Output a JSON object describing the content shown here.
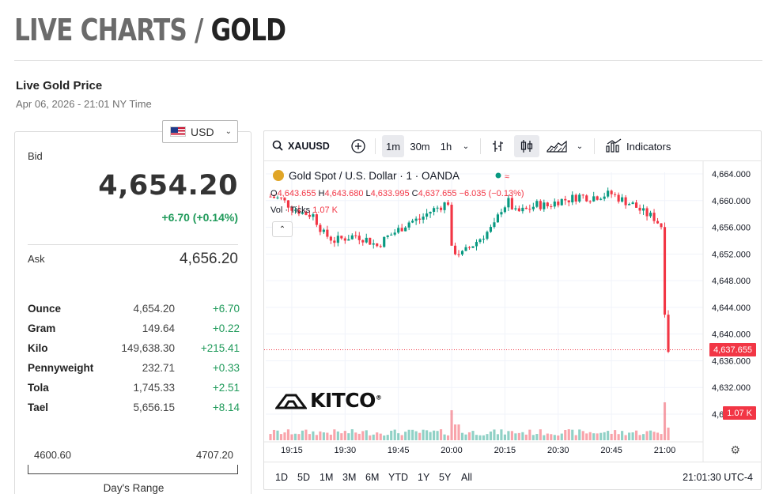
{
  "page": {
    "title_prefix": "LIVE CHARTS /",
    "title_main": "GOLD"
  },
  "header": {
    "section_title": "Live Gold Price",
    "timestamp": "Apr 06, 2026 - 21:01 NY Time"
  },
  "currency": {
    "selected": "USD",
    "flag_icon": "us-flag-icon"
  },
  "quote": {
    "bid_label": "Bid",
    "bid": "4,654.20",
    "change": "+6.70 (+0.14%)",
    "ask_label": "Ask",
    "ask": "4,656.20",
    "change_color": "#1f9a5a"
  },
  "units": [
    {
      "name": "Ounce",
      "price": "4,654.20",
      "change": "+6.70"
    },
    {
      "name": "Gram",
      "price": "149.64",
      "change": "+0.22"
    },
    {
      "name": "Kilo",
      "price": "149,638.30",
      "change": "+215.41"
    },
    {
      "name": "Pennyweight",
      "price": "232.71",
      "change": "+0.33"
    },
    {
      "name": "Tola",
      "price": "1,745.33",
      "change": "+2.51"
    },
    {
      "name": "Tael",
      "price": "5,656.15",
      "change": "+8.14"
    }
  ],
  "range": {
    "low": "4600.60",
    "high": "4707.20",
    "label": "Day's Range"
  },
  "chart_toolbar": {
    "symbol": "XAUUSD",
    "intervals": [
      "1m",
      "30m",
      "1h"
    ],
    "active_interval": "1m",
    "indicators_label": "Indicators"
  },
  "chart_bottombar": {
    "ranges": [
      "1D",
      "5D",
      "1M",
      "3M",
      "6M",
      "YTD",
      "1Y",
      "5Y",
      "All"
    ],
    "clock": "21:01:30 UTC-4"
  },
  "chart_data": {
    "type": "candlestick",
    "title": "Gold Spot / U.S. Dollar · 1 · OANDA",
    "ohlc_labels": {
      "open": "4,643.655",
      "high": "4,643.680",
      "low": "4,633.995",
      "close": "4,637.655",
      "change": "−6.035 (−0.13%)"
    },
    "volume_label": "Vol · Ticks",
    "volume_value": "1.07 K",
    "last_price": "4,637.655",
    "last_volume": "1.07 K",
    "y_ticks": [
      "4,664.000",
      "4,660.000",
      "4,656.000",
      "4,652.000",
      "4,648.000",
      "4,644.000",
      "4,640.000",
      "4,636.000",
      "4,632.000",
      "4,628.000"
    ],
    "ylim": [
      4628,
      4664
    ],
    "x_ticks": [
      "19:15",
      "19:30",
      "19:45",
      "20:00",
      "20:15",
      "20:30",
      "20:45",
      "21:00"
    ],
    "x_start": "19:09",
    "x_end": "21:01",
    "up_color": "#089981",
    "down_color": "#f23645",
    "grid": true,
    "close_path": [
      {
        "t": "19:09",
        "v": 4660.6
      },
      {
        "t": "19:12",
        "v": 4660.2
      },
      {
        "t": "19:15",
        "v": 4659.0
      },
      {
        "t": "19:18",
        "v": 4658.2
      },
      {
        "t": "19:21",
        "v": 4657.8
      },
      {
        "t": "19:24",
        "v": 4655.0
      },
      {
        "t": "19:27",
        "v": 4654.0
      },
      {
        "t": "19:30",
        "v": 4654.4
      },
      {
        "t": "19:33",
        "v": 4654.8
      },
      {
        "t": "19:36",
        "v": 4654.2
      },
      {
        "t": "19:39",
        "v": 4653.2
      },
      {
        "t": "19:42",
        "v": 4654.6
      },
      {
        "t": "19:45",
        "v": 4655.6
      },
      {
        "t": "19:48",
        "v": 4656.8
      },
      {
        "t": "19:51",
        "v": 4657.2
      },
      {
        "t": "19:54",
        "v": 4658.4
      },
      {
        "t": "19:57",
        "v": 4659.2
      },
      {
        "t": "19:59",
        "v": 4659.8
      },
      {
        "t": "20:00",
        "v": 4652.6
      },
      {
        "t": "20:03",
        "v": 4652.0
      },
      {
        "t": "20:06",
        "v": 4653.4
      },
      {
        "t": "20:09",
        "v": 4654.8
      },
      {
        "t": "20:12",
        "v": 4656.2
      },
      {
        "t": "20:14",
        "v": 4658.8
      },
      {
        "t": "20:16",
        "v": 4659.8
      },
      {
        "t": "20:18",
        "v": 4658.2
      },
      {
        "t": "20:21",
        "v": 4658.6
      },
      {
        "t": "20:24",
        "v": 4659.4
      },
      {
        "t": "20:27",
        "v": 4659.2
      },
      {
        "t": "20:30",
        "v": 4660.0
      },
      {
        "t": "20:33",
        "v": 4660.2
      },
      {
        "t": "20:36",
        "v": 4660.7
      },
      {
        "t": "20:39",
        "v": 4660.5
      },
      {
        "t": "20:42",
        "v": 4660.8
      },
      {
        "t": "20:45",
        "v": 4661.0
      },
      {
        "t": "20:48",
        "v": 4660.1
      },
      {
        "t": "20:51",
        "v": 4659.4
      },
      {
        "t": "20:54",
        "v": 4658.2
      },
      {
        "t": "20:57",
        "v": 4657.4
      },
      {
        "t": "20:59",
        "v": 4656.2
      },
      {
        "t": "21:00",
        "v": 4643.6
      },
      {
        "t": "21:01",
        "v": 4637.7
      }
    ]
  }
}
